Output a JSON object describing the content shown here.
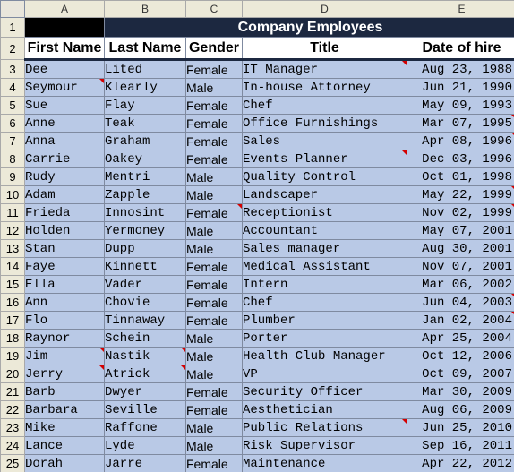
{
  "columns": [
    "A",
    "B",
    "C",
    "D",
    "E"
  ],
  "title": "Company Employees",
  "headers": {
    "first_name": "First Name",
    "last_name": "Last Name",
    "gender": "Gender",
    "title": "Title",
    "date_of_hire": "Date of hire"
  },
  "row_numbers": [
    "1",
    "2",
    "3",
    "4",
    "5",
    "6",
    "7",
    "8",
    "9",
    "10",
    "11",
    "12",
    "13",
    "14",
    "15",
    "16",
    "17",
    "18",
    "19",
    "20",
    "21",
    "22",
    "23",
    "24",
    "25"
  ],
  "employees": [
    {
      "first": "Dee",
      "last": "Lited",
      "gender": "Female",
      "title": "IT Manager",
      "date": "Aug 23, 1988"
    },
    {
      "first": "Seymour",
      "last": "Klearly",
      "gender": "Male",
      "title": "In-house Attorney",
      "date": "Jun 21, 1990"
    },
    {
      "first": "Sue",
      "last": "Flay",
      "gender": "Female",
      "title": "Chef",
      "date": "May 09, 1993"
    },
    {
      "first": "Anne",
      "last": "Teak",
      "gender": "Female",
      "title": "Office Furnishings",
      "date": "Mar 07, 1995"
    },
    {
      "first": "Anna",
      "last": "Graham",
      "gender": "Female",
      "title": "Sales",
      "date": "Apr 08, 1996"
    },
    {
      "first": "Carrie",
      "last": "Oakey",
      "gender": "Female",
      "title": "Events Planner",
      "date": "Dec 03, 1996"
    },
    {
      "first": "Rudy",
      "last": "Mentri",
      "gender": "Male",
      "title": "Quality Control",
      "date": "Oct 01, 1998"
    },
    {
      "first": "Adam",
      "last": "Zapple",
      "gender": "Male",
      "title": "Landscaper",
      "date": "May 22, 1999"
    },
    {
      "first": "Frieda",
      "last": "Innosint",
      "gender": "Female",
      "title": "Receptionist",
      "date": "Nov 02, 1999"
    },
    {
      "first": "Holden",
      "last": "Yermoney",
      "gender": "Male",
      "title": "Accountant",
      "date": "May 07, 2001"
    },
    {
      "first": "Stan",
      "last": "Dupp",
      "gender": "Male",
      "title": "Sales manager",
      "date": "Aug 30, 2001"
    },
    {
      "first": "Faye",
      "last": "Kinnett",
      "gender": "Female",
      "title": "Medical Assistant",
      "date": "Nov 07, 2001"
    },
    {
      "first": "Ella",
      "last": "Vader",
      "gender": "Female",
      "title": "Intern",
      "date": "Mar 06, 2002"
    },
    {
      "first": "Ann",
      "last": "Chovie",
      "gender": "Female",
      "title": "Chef",
      "date": "Jun 04, 2003"
    },
    {
      "first": "Flo",
      "last": "Tinnaway",
      "gender": "Female",
      "title": "Plumber",
      "date": "Jan 02, 2004"
    },
    {
      "first": "Raynor",
      "last": "Schein",
      "gender": "Male",
      "title": "Porter",
      "date": "Apr 25, 2004"
    },
    {
      "first": "Jim",
      "last": "Nastik",
      "gender": "Male",
      "title": "Health Club Manager",
      "date": "Oct 12, 2006"
    },
    {
      "first": "Jerry",
      "last": "Atrick",
      "gender": "Male",
      "title": "VP",
      "date": "Oct 09, 2007"
    },
    {
      "first": "Barb",
      "last": "Dwyer",
      "gender": "Female",
      "title": "Security Officer",
      "date": "Mar 30, 2009"
    },
    {
      "first": "Barbara",
      "last": "Seville",
      "gender": "Female",
      "title": "Aesthetician",
      "date": "Aug 06, 2009"
    },
    {
      "first": "Mike",
      "last": "Raffone",
      "gender": "Male",
      "title": "Public Relations",
      "date": "Jun 25, 2010"
    },
    {
      "first": "Lance",
      "last": "Lyde",
      "gender": "Male",
      "title": "Risk Supervisor",
      "date": "Sep 16, 2011"
    },
    {
      "first": "Dorah",
      "last": "Jarre",
      "gender": "Female",
      "title": "Maintenance",
      "date": "Apr 22, 2012"
    }
  ],
  "comment_markers": [
    {
      "row": 3,
      "col": "D"
    },
    {
      "row": 4,
      "col": "A"
    },
    {
      "row": 6,
      "col": "E"
    },
    {
      "row": 7,
      "col": "E"
    },
    {
      "row": 8,
      "col": "D"
    },
    {
      "row": 10,
      "col": "E"
    },
    {
      "row": 11,
      "col": "C"
    },
    {
      "row": 11,
      "col": "E"
    },
    {
      "row": 16,
      "col": "E"
    },
    {
      "row": 17,
      "col": "E"
    },
    {
      "row": 19,
      "col": "A"
    },
    {
      "row": 19,
      "col": "B"
    },
    {
      "row": 20,
      "col": "A"
    },
    {
      "row": 20,
      "col": "B"
    },
    {
      "row": 23,
      "col": "D"
    }
  ],
  "colors": {
    "title_bg": "#1c2840",
    "cell_bg": "#b9c9e6",
    "marker": "#d40000"
  }
}
